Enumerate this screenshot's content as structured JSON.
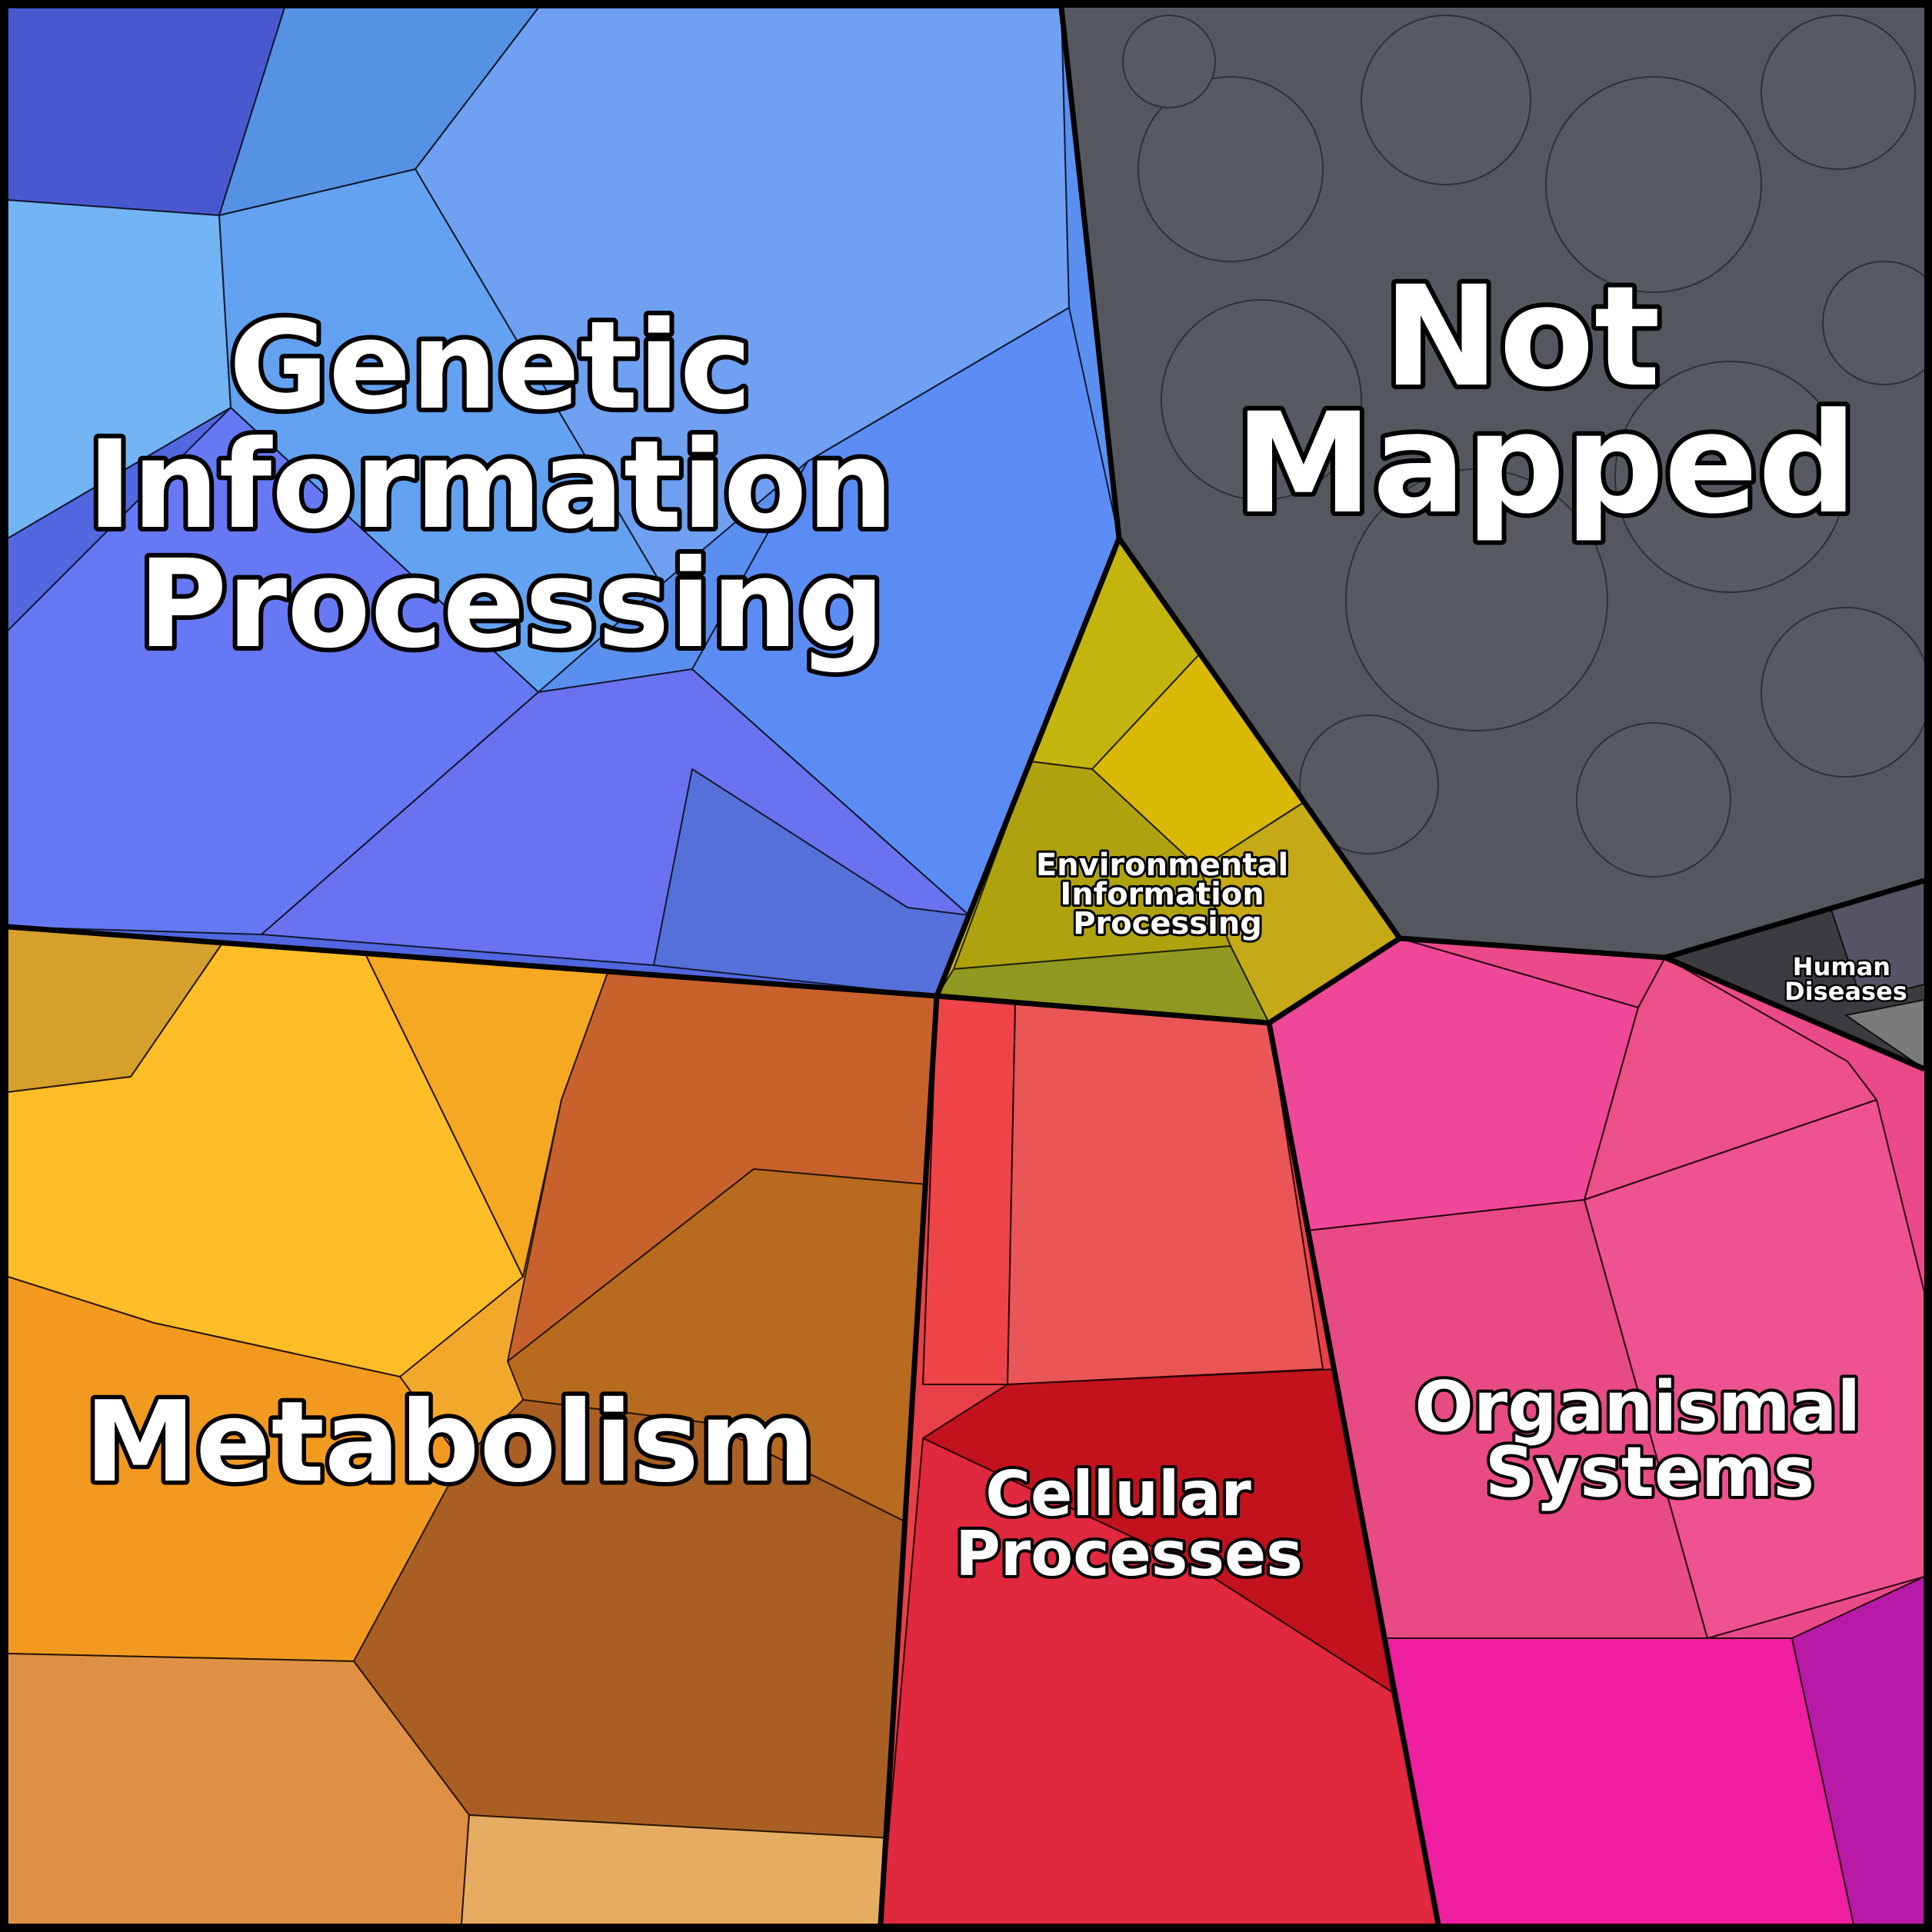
{
  "diagram": {
    "type": "voronoi-treemap",
    "regions": [
      {
        "id": "genetic",
        "label_lines": [
          "Genetic",
          "Information",
          "Processing"
        ],
        "color": "#5b8ef0",
        "color_alt": "#6a72ee"
      },
      {
        "id": "not-mapped",
        "label_lines": [
          "Not",
          "Mapped"
        ],
        "color": "#54585e",
        "color_alt": "#4b4f55"
      },
      {
        "id": "environmental",
        "label_lines": [
          "Environmental",
          "Information",
          "Processing"
        ],
        "color": "#c7b00c",
        "color_alt": "#a6a01a"
      },
      {
        "id": "metabolism",
        "label_lines": [
          "Metabolism"
        ],
        "color": "#f4a826",
        "color_alt": "#b5652c"
      },
      {
        "id": "cellular",
        "label_lines": [
          "Cellular",
          "Processes"
        ],
        "color": "#e83848",
        "color_alt": "#c0101c"
      },
      {
        "id": "organismal",
        "label_lines": [
          "Organismal",
          "Systems"
        ],
        "color": "#ea4a8a",
        "color_alt": "#f01ea0"
      },
      {
        "id": "human-diseases",
        "label_lines": [
          "Human",
          "Diseases"
        ],
        "color": "#3e3b40",
        "color_alt": "#555060"
      }
    ]
  }
}
